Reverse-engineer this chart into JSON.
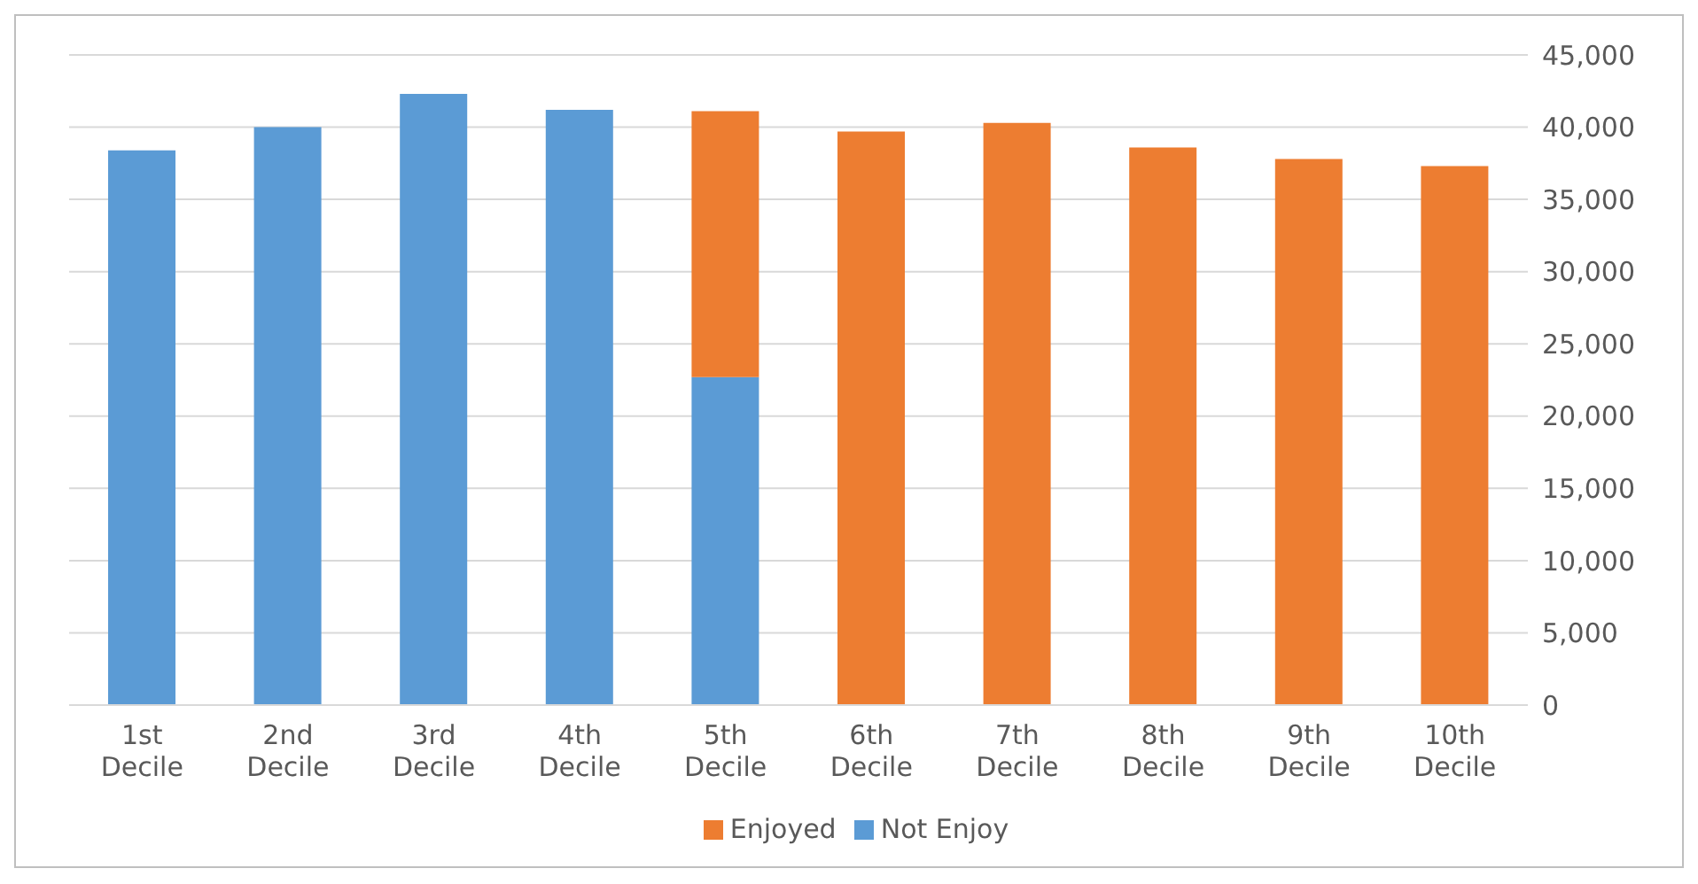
{
  "chart_data": {
    "type": "bar",
    "stacked": true,
    "categories": [
      "1st Decile",
      "2nd Decile",
      "3rd Decile",
      "4th Decile",
      "5th Decile",
      "6th Decile",
      "7th Decile",
      "8th Decile",
      "9th Decile",
      "10th Decile"
    ],
    "series": [
      {
        "name": "Not Enjoy",
        "color": "#5b9bd5",
        "values": [
          38400,
          40000,
          42300,
          41200,
          22700,
          null,
          null,
          null,
          null,
          null
        ]
      },
      {
        "name": "Enjoyed",
        "color": "#ed7d31",
        "values": [
          null,
          null,
          null,
          null,
          18400,
          39700,
          40300,
          38600,
          37800,
          37300
        ]
      }
    ],
    "ylim": [
      0,
      45000
    ],
    "yticks": [
      0,
      {
        "value": 5000,
        "label": "5,000"
      },
      {
        "value": 10000,
        "label": "10,000"
      },
      {
        "value": 15000,
        "label": "15,000"
      },
      {
        "value": 20000,
        "label": "20,000"
      },
      {
        "value": 25000,
        "label": "25,000"
      },
      {
        "value": 30000,
        "label": "30,000"
      },
      {
        "value": 35000,
        "label": "35,000"
      },
      {
        "value": 40000,
        "label": "40,000"
      },
      {
        "value": 45000,
        "label": "45,000"
      }
    ],
    "grid": "y",
    "legend": "bottom"
  }
}
